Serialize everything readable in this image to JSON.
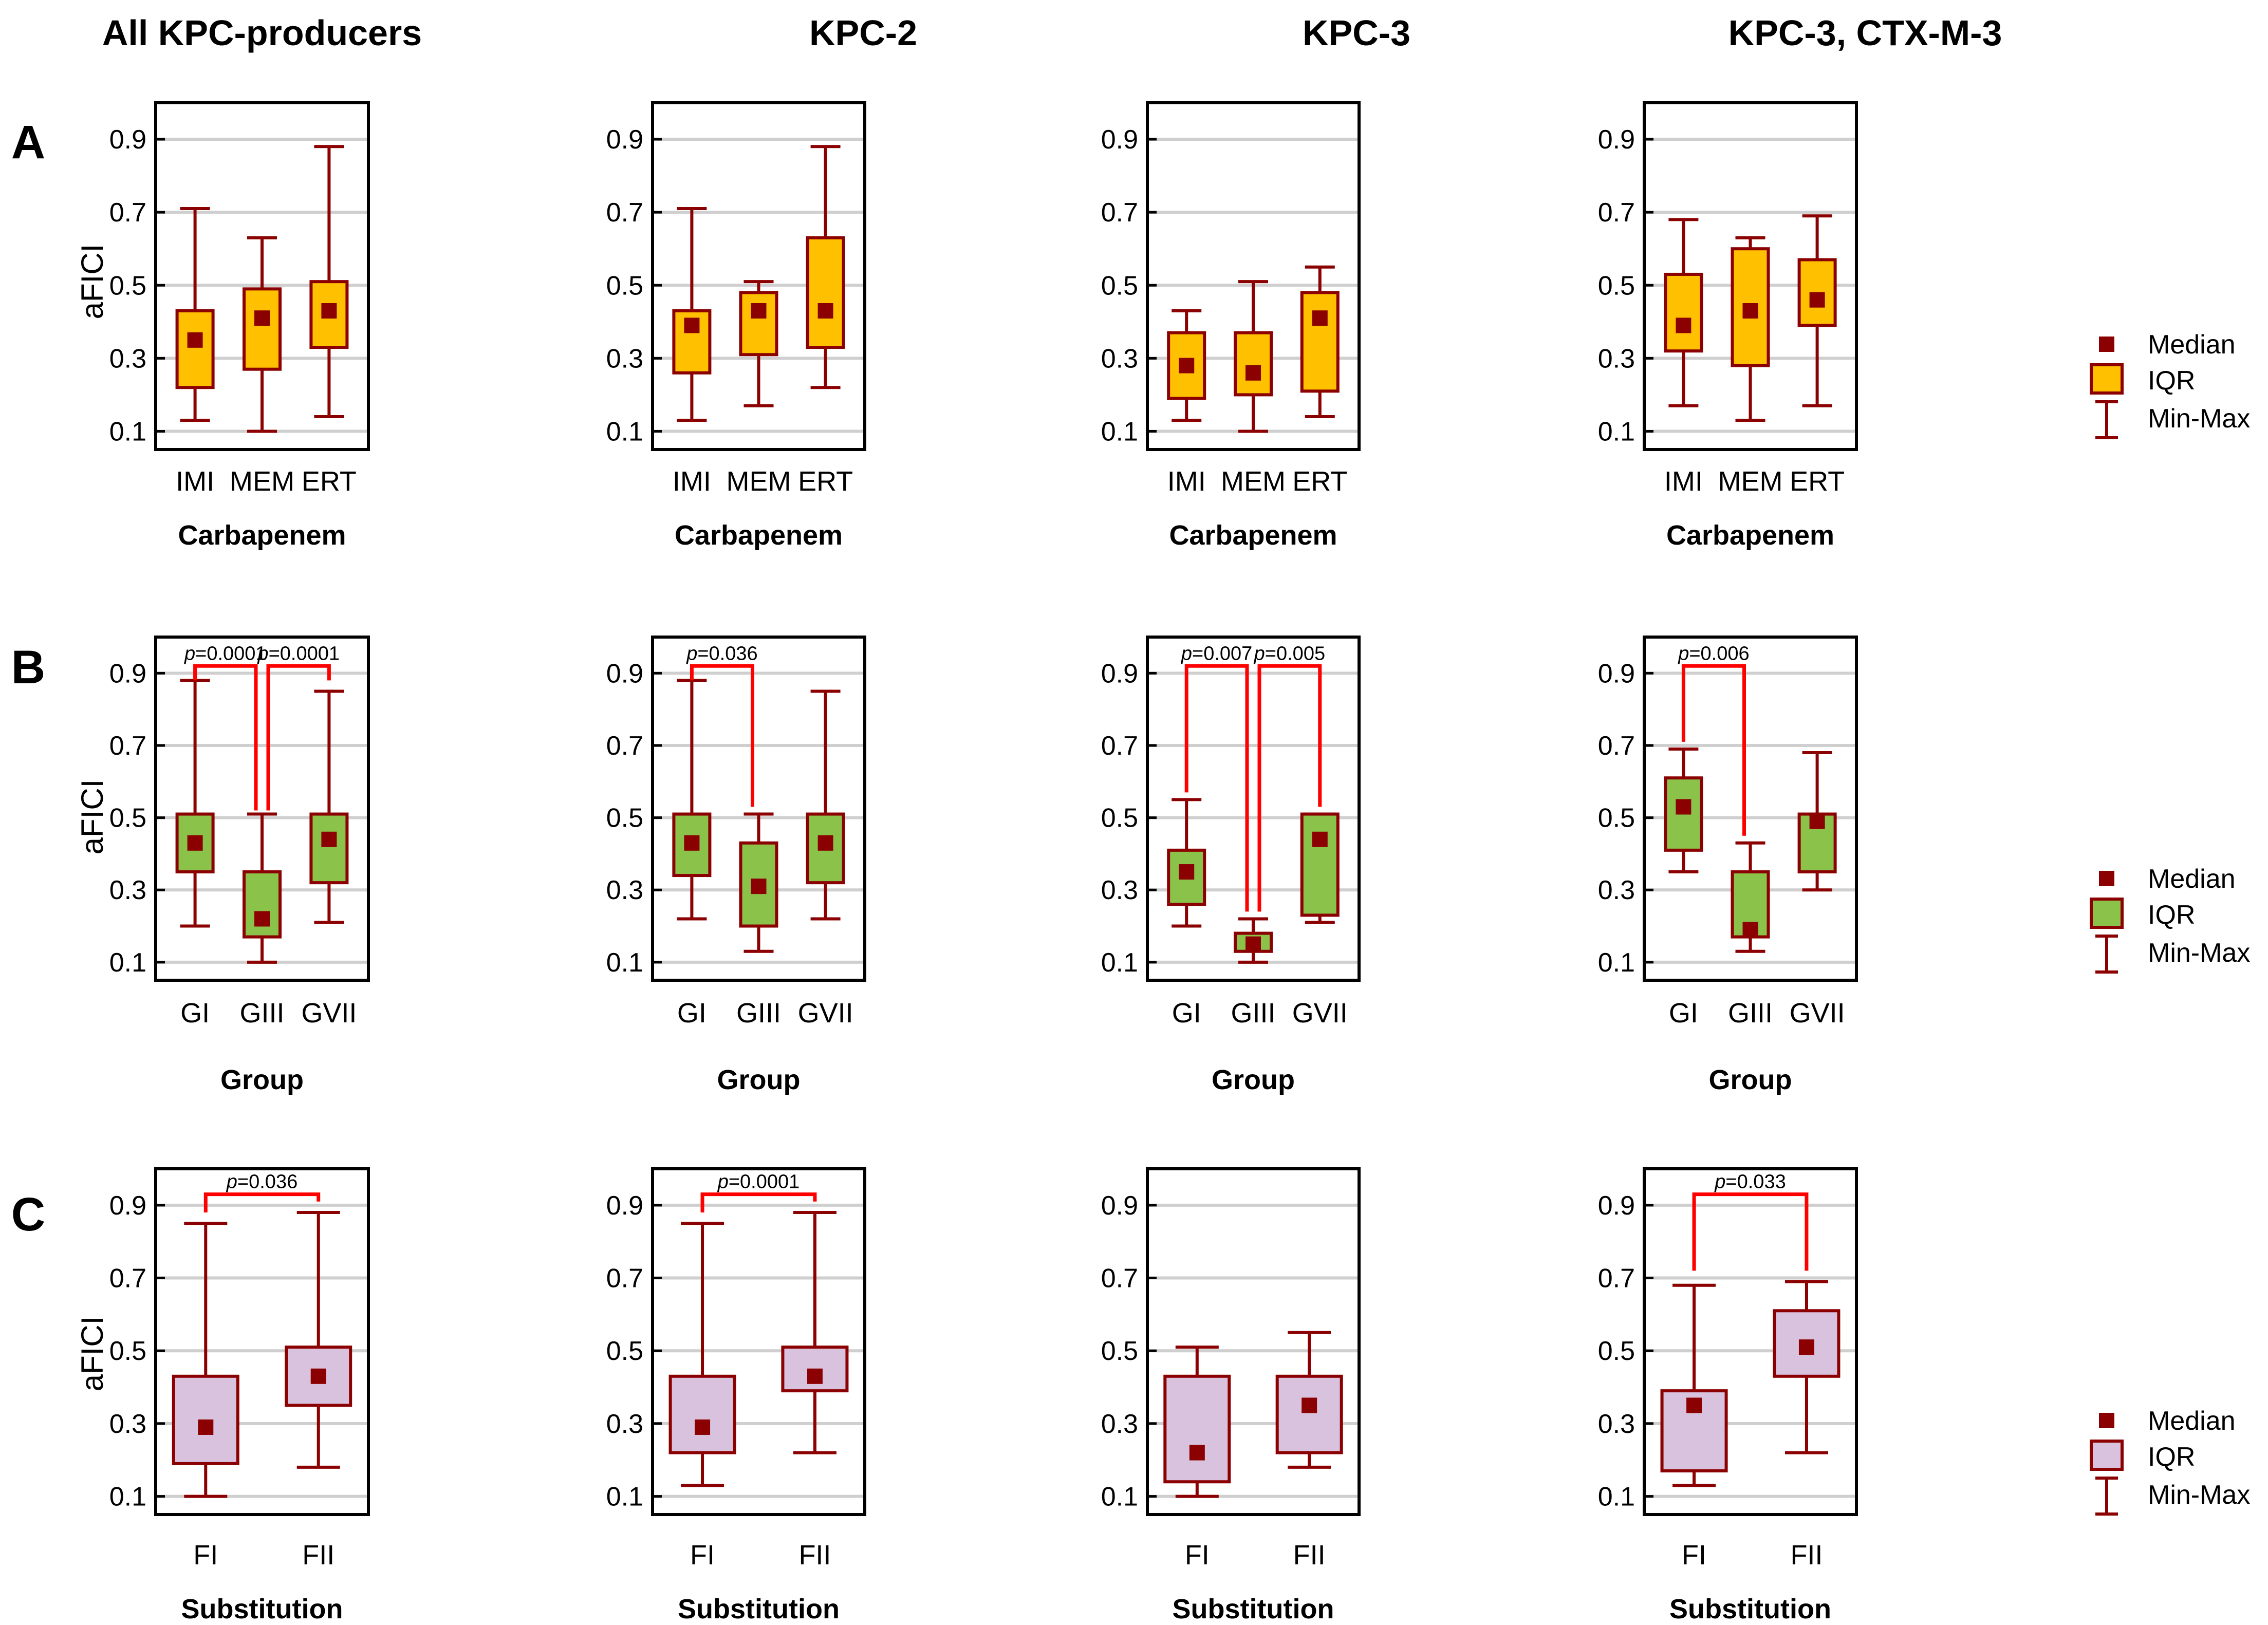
{
  "columns": [
    "All KPC-producers",
    "KPC-2",
    "KPC-3",
    "KPC-3, CTX-M-3"
  ],
  "rows": [
    "A",
    "B",
    "C"
  ],
  "ylabel": "aFICI",
  "legend": {
    "median": "Median",
    "iqr": "IQR",
    "minmax": "Min-Max"
  },
  "colors": {
    "frame": "#000000",
    "grid": "#cfcfcf",
    "whisker": "#8b0000",
    "median": "#8b0000",
    "bracket": "#ff0000",
    "fillA": "#ffc000",
    "fillB": "#8bc34a",
    "fillC": "#d9c2de"
  },
  "chart_data": [
    {
      "row": "A",
      "col": 0,
      "type": "box",
      "title": "All KPC-producers",
      "xlabel": "Carbapenem",
      "ylabel": "aFICI",
      "yticks": [
        "0.1",
        "0.3",
        "0.5",
        "0.7",
        "0.9"
      ],
      "ylim": [
        0.05,
        1.0
      ],
      "categories": [
        "IMI",
        "MEM",
        "ERT"
      ],
      "boxes": [
        {
          "min": 0.13,
          "q1": 0.22,
          "median": 0.35,
          "q3": 0.43,
          "max": 0.71
        },
        {
          "min": 0.1,
          "q1": 0.27,
          "median": 0.41,
          "q3": 0.49,
          "max": 0.63
        },
        {
          "min": 0.14,
          "q1": 0.33,
          "median": 0.43,
          "q3": 0.51,
          "max": 0.88
        }
      ],
      "brackets": []
    },
    {
      "row": "A",
      "col": 1,
      "type": "box",
      "title": "KPC-2",
      "xlabel": "Carbapenem",
      "ylabel": "aFICI",
      "yticks": [
        "0.1",
        "0.3",
        "0.5",
        "0.7",
        "0.9"
      ],
      "ylim": [
        0.05,
        1.0
      ],
      "categories": [
        "IMI",
        "MEM",
        "ERT"
      ],
      "boxes": [
        {
          "min": 0.13,
          "q1": 0.26,
          "median": 0.39,
          "q3": 0.43,
          "max": 0.71
        },
        {
          "min": 0.17,
          "q1": 0.31,
          "median": 0.43,
          "q3": 0.48,
          "max": 0.51
        },
        {
          "min": 0.22,
          "q1": 0.33,
          "median": 0.43,
          "q3": 0.63,
          "max": 0.88
        }
      ],
      "brackets": []
    },
    {
      "row": "A",
      "col": 2,
      "type": "box",
      "title": "KPC-3",
      "xlabel": "Carbapenem",
      "ylabel": "aFICI",
      "yticks": [
        "0.1",
        "0.3",
        "0.5",
        "0.7",
        "0.9"
      ],
      "ylim": [
        0.05,
        1.0
      ],
      "categories": [
        "IMI",
        "MEM",
        "ERT"
      ],
      "boxes": [
        {
          "min": 0.13,
          "q1": 0.19,
          "median": 0.28,
          "q3": 0.37,
          "max": 0.43
        },
        {
          "min": 0.1,
          "q1": 0.2,
          "median": 0.26,
          "q3": 0.37,
          "max": 0.51
        },
        {
          "min": 0.14,
          "q1": 0.21,
          "median": 0.41,
          "q3": 0.48,
          "max": 0.55
        }
      ],
      "brackets": []
    },
    {
      "row": "A",
      "col": 3,
      "type": "box",
      "title": "KPC-3, CTX-M-3",
      "xlabel": "Carbapenem",
      "ylabel": "aFICI",
      "yticks": [
        "0.1",
        "0.3",
        "0.5",
        "0.7",
        "0.9"
      ],
      "ylim": [
        0.05,
        1.0
      ],
      "categories": [
        "IMI",
        "MEM",
        "ERT"
      ],
      "boxes": [
        {
          "min": 0.17,
          "q1": 0.32,
          "median": 0.39,
          "q3": 0.53,
          "max": 0.68
        },
        {
          "min": 0.13,
          "q1": 0.28,
          "median": 0.43,
          "q3": 0.6,
          "max": 0.63
        },
        {
          "min": 0.17,
          "q1": 0.39,
          "median": 0.46,
          "q3": 0.57,
          "max": 0.69
        }
      ],
      "brackets": []
    },
    {
      "row": "B",
      "col": 0,
      "type": "box",
      "title": "All KPC-producers",
      "xlabel": "Group",
      "ylabel": "aFICI",
      "yticks": [
        "0.1",
        "0.3",
        "0.5",
        "0.7",
        "0.9"
      ],
      "ylim": [
        0.05,
        1.0
      ],
      "categories": [
        "GI",
        "GIII",
        "GVII"
      ],
      "boxes": [
        {
          "min": 0.2,
          "q1": 0.35,
          "median": 0.43,
          "q3": 0.51,
          "max": 0.88
        },
        {
          "min": 0.1,
          "q1": 0.17,
          "median": 0.22,
          "q3": 0.35,
          "max": 0.51
        },
        {
          "min": 0.21,
          "q1": 0.32,
          "median": 0.44,
          "q3": 0.51,
          "max": 0.85
        }
      ],
      "brackets": [
        {
          "from": 0,
          "to": 1,
          "fromY": 0.88,
          "toY": 0.52,
          "level": 0.92,
          "pre": "p",
          "label": "=0.0001"
        },
        {
          "from": 1,
          "to": 2,
          "fromY": 0.52,
          "toY": 0.88,
          "level": 0.92,
          "pre": "p",
          "label": "=0.0001"
        }
      ]
    },
    {
      "row": "B",
      "col": 1,
      "type": "box",
      "title": "KPC-2",
      "xlabel": "Group",
      "ylabel": "aFICI",
      "yticks": [
        "0.1",
        "0.3",
        "0.5",
        "0.7",
        "0.9"
      ],
      "ylim": [
        0.05,
        1.0
      ],
      "categories": [
        "GI",
        "GIII",
        "GVII"
      ],
      "boxes": [
        {
          "min": 0.22,
          "q1": 0.34,
          "median": 0.43,
          "q3": 0.51,
          "max": 0.88
        },
        {
          "min": 0.13,
          "q1": 0.2,
          "median": 0.31,
          "q3": 0.43,
          "max": 0.51
        },
        {
          "min": 0.22,
          "q1": 0.32,
          "median": 0.43,
          "q3": 0.51,
          "max": 0.85
        }
      ],
      "brackets": [
        {
          "from": 0,
          "to": 1,
          "fromY": 0.88,
          "toY": 0.53,
          "level": 0.92,
          "pre": "p",
          "label": "=0.036"
        }
      ]
    },
    {
      "row": "B",
      "col": 2,
      "type": "box",
      "title": "KPC-3",
      "xlabel": "Group",
      "ylabel": "aFICI",
      "yticks": [
        "0.1",
        "0.3",
        "0.5",
        "0.7",
        "0.9"
      ],
      "ylim": [
        0.05,
        1.0
      ],
      "categories": [
        "GI",
        "GIII",
        "GVII"
      ],
      "boxes": [
        {
          "min": 0.2,
          "q1": 0.26,
          "median": 0.35,
          "q3": 0.41,
          "max": 0.55
        },
        {
          "min": 0.1,
          "q1": 0.13,
          "median": 0.15,
          "q3": 0.18,
          "max": 0.22
        },
        {
          "min": 0.21,
          "q1": 0.23,
          "median": 0.44,
          "q3": 0.51,
          "max": 0.51
        }
      ],
      "brackets": [
        {
          "from": 0,
          "to": 1,
          "fromY": 0.57,
          "toY": 0.24,
          "level": 0.92,
          "pre": "p",
          "label": "=0.007"
        },
        {
          "from": 1,
          "to": 2,
          "fromY": 0.24,
          "toY": 0.53,
          "level": 0.92,
          "pre": "p",
          "label": "=0.005"
        }
      ]
    },
    {
      "row": "B",
      "col": 3,
      "type": "box",
      "title": "KPC-3, CTX-M-3",
      "xlabel": "Group",
      "ylabel": "aFICI",
      "yticks": [
        "0.1",
        "0.3",
        "0.5",
        "0.7",
        "0.9"
      ],
      "ylim": [
        0.05,
        1.0
      ],
      "categories": [
        "GI",
        "GIII",
        "GVII"
      ],
      "boxes": [
        {
          "min": 0.35,
          "q1": 0.41,
          "median": 0.53,
          "q3": 0.61,
          "max": 0.69
        },
        {
          "min": 0.13,
          "q1": 0.17,
          "median": 0.19,
          "q3": 0.35,
          "max": 0.43
        },
        {
          "min": 0.3,
          "q1": 0.35,
          "median": 0.49,
          "q3": 0.51,
          "max": 0.68
        }
      ],
      "brackets": [
        {
          "from": 0,
          "to": 1,
          "fromY": 0.71,
          "toY": 0.45,
          "level": 0.92,
          "pre": "p",
          "label": "=0.006"
        }
      ]
    },
    {
      "row": "C",
      "col": 0,
      "type": "box",
      "title": "All KPC-producers",
      "xlabel": "Substitution",
      "ylabel": "aFICI",
      "yticks": [
        "0.1",
        "0.3",
        "0.5",
        "0.7",
        "0.9"
      ],
      "ylim": [
        0.05,
        1.0
      ],
      "categories": [
        "FI",
        "FII"
      ],
      "boxes": [
        {
          "min": 0.1,
          "q1": 0.19,
          "median": 0.29,
          "q3": 0.43,
          "max": 0.85
        },
        {
          "min": 0.18,
          "q1": 0.35,
          "median": 0.43,
          "q3": 0.51,
          "max": 0.88
        }
      ],
      "brackets": [
        {
          "from": 0,
          "to": 1,
          "fromY": 0.88,
          "toY": 0.91,
          "level": 0.93,
          "pre": "p",
          "label": "=0.036"
        }
      ]
    },
    {
      "row": "C",
      "col": 1,
      "type": "box",
      "title": "KPC-2",
      "xlabel": "Substitution",
      "ylabel": "aFICI",
      "yticks": [
        "0.1",
        "0.3",
        "0.5",
        "0.7",
        "0.9"
      ],
      "ylim": [
        0.05,
        1.0
      ],
      "categories": [
        "FI",
        "FII"
      ],
      "boxes": [
        {
          "min": 0.13,
          "q1": 0.22,
          "median": 0.29,
          "q3": 0.43,
          "max": 0.85
        },
        {
          "min": 0.22,
          "q1": 0.39,
          "median": 0.43,
          "q3": 0.51,
          "max": 0.88
        }
      ],
      "brackets": [
        {
          "from": 0,
          "to": 1,
          "fromY": 0.88,
          "toY": 0.91,
          "level": 0.93,
          "pre": "p",
          "label": "=0.0001"
        }
      ]
    },
    {
      "row": "C",
      "col": 2,
      "type": "box",
      "title": "KPC-3",
      "xlabel": "Substitution",
      "ylabel": "aFICI",
      "yticks": [
        "0.1",
        "0.3",
        "0.5",
        "0.7",
        "0.9"
      ],
      "ylim": [
        0.05,
        1.0
      ],
      "categories": [
        "FI",
        "FII"
      ],
      "boxes": [
        {
          "min": 0.1,
          "q1": 0.14,
          "median": 0.22,
          "q3": 0.43,
          "max": 0.51
        },
        {
          "min": 0.18,
          "q1": 0.22,
          "median": 0.35,
          "q3": 0.43,
          "max": 0.55
        }
      ],
      "brackets": []
    },
    {
      "row": "C",
      "col": 3,
      "type": "box",
      "title": "KPC-3, CTX-M-3",
      "xlabel": "Substitution",
      "ylabel": "aFICI",
      "yticks": [
        "0.1",
        "0.3",
        "0.5",
        "0.7",
        "0.9"
      ],
      "ylim": [
        0.05,
        1.0
      ],
      "categories": [
        "FI",
        "FII"
      ],
      "boxes": [
        {
          "min": 0.13,
          "q1": 0.17,
          "median": 0.35,
          "q3": 0.39,
          "max": 0.68
        },
        {
          "min": 0.22,
          "q1": 0.43,
          "median": 0.51,
          "q3": 0.61,
          "max": 0.69
        }
      ],
      "brackets": [
        {
          "from": 0,
          "to": 1,
          "fromY": 0.72,
          "toY": 0.72,
          "level": 0.93,
          "pre": "p",
          "label": "=0.033"
        }
      ]
    }
  ]
}
